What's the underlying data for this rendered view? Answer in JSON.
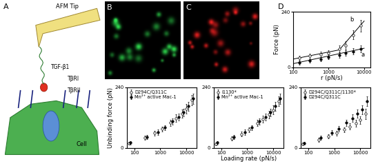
{
  "diagram": {
    "label": "A",
    "texts": {
      "tip": "AFM Tip",
      "ligand": "TGF-β1",
      "receptor1": "TβRI",
      "receptor2": "TβRII",
      "cell": "Cell"
    }
  },
  "images": [
    {
      "label": "B",
      "color": "#30e050"
    },
    {
      "label": "C",
      "color": "#f02020"
    }
  ],
  "chart_data": [
    {
      "type": "scatter",
      "label": "D",
      "xlabel": "r (pN/s)",
      "ylabel": "Force (pN)",
      "log": "x",
      "xlim": [
        100,
        15000
      ],
      "ylim": [
        0,
        240
      ],
      "xticks": [
        100,
        1000,
        10000
      ],
      "yticks": [
        0,
        240
      ],
      "series": [
        {
          "type": "scatter",
          "marker": "filled_circle",
          "color": "#000000",
          "x": [
            150,
            300,
            600,
            1000,
            2000,
            3000,
            5000,
            8000
          ],
          "values": [
            20,
            28,
            35,
            45,
            52,
            60,
            68,
            78
          ],
          "yerr": [
            8,
            8,
            10,
            10,
            12,
            12,
            14,
            15
          ]
        },
        {
          "type": "scatter",
          "marker": "open_circle",
          "color": "#000000",
          "x": [
            150,
            300,
            600,
            1000,
            2000,
            3000,
            5000,
            8000
          ],
          "values": [
            40,
            48,
            55,
            62,
            78,
            95,
            140,
            180
          ],
          "yerr": [
            10,
            10,
            12,
            12,
            15,
            18,
            20,
            25
          ]
        },
        {
          "type": "line",
          "color": "#000000",
          "x": [
            100,
            10000
          ],
          "values": [
            15,
            82
          ]
        },
        {
          "type": "line",
          "color": "#000000",
          "x": [
            100,
            2000,
            10000
          ],
          "values": [
            35,
            75,
            200
          ]
        }
      ],
      "annotations": [
        {
          "text": "a",
          "x": 9000,
          "y": 55
        },
        {
          "text": "b",
          "x": 4500,
          "y": 205
        }
      ]
    },
    {
      "type": "scatter",
      "ylabel": "Unbinding force (pN)",
      "log": "x",
      "legend": "upper left",
      "xlim": [
        50,
        25000
      ],
      "ylim": [
        0,
        240
      ],
      "xticks": [
        100,
        1000,
        10000
      ],
      "yticks": [
        0,
        240
      ],
      "series": [
        {
          "name": "D294C/Q311C",
          "marker": "open_circle",
          "color": "#000000",
          "x": [
            60,
            250,
            600,
            1200,
            2500,
            4000,
            7000,
            10000,
            16000
          ],
          "values": [
            18,
            40,
            58,
            75,
            100,
            118,
            135,
            155,
            190
          ],
          "yerr": [
            6,
            8,
            10,
            10,
            12,
            14,
            16,
            18,
            20
          ]
        },
        {
          "name": "Mn²⁺ active Mac-1",
          "marker": "filled_circle",
          "color": "#000000",
          "x": [
            70,
            300,
            800,
            1500,
            3000,
            5000,
            8000,
            12000,
            18000
          ],
          "values": [
            20,
            42,
            62,
            80,
            105,
            122,
            140,
            165,
            195
          ],
          "yerr": [
            6,
            8,
            10,
            10,
            12,
            14,
            16,
            18,
            20
          ]
        }
      ]
    },
    {
      "type": "scatter",
      "xlabel": "Loading rate (pN/s)",
      "log": "x",
      "legend": "upper left",
      "xlim": [
        50,
        25000
      ],
      "ylim": [
        0,
        240
      ],
      "xticks": [
        100,
        1000,
        10000
      ],
      "yticks": [
        0,
        240
      ],
      "series": [
        {
          "name": "I1130*",
          "marker": "open_circle",
          "color": "#000000",
          "x": [
            60,
            250,
            600,
            1200,
            2500,
            4000,
            7000,
            10000,
            16000
          ],
          "values": [
            16,
            38,
            55,
            72,
            98,
            115,
            132,
            150,
            185
          ],
          "yerr": [
            6,
            8,
            10,
            10,
            12,
            14,
            16,
            18,
            20
          ]
        },
        {
          "name": "Mn²⁺ active Mac-1",
          "marker": "filled_circle",
          "color": "#000000",
          "x": [
            70,
            300,
            800,
            1500,
            3000,
            5000,
            8000,
            12000,
            18000
          ],
          "values": [
            20,
            42,
            62,
            80,
            105,
            122,
            140,
            165,
            195
          ],
          "yerr": [
            6,
            8,
            10,
            10,
            12,
            14,
            16,
            18,
            20
          ]
        }
      ]
    },
    {
      "type": "scatter",
      "log": "x",
      "legend": "upper left",
      "xlim": [
        50,
        25000
      ],
      "ylim": [
        0,
        240
      ],
      "xticks": [
        100,
        1000,
        10000
      ],
      "yticks": [
        0,
        240
      ],
      "series": [
        {
          "name": "D294C/Q311C/1130*",
          "marker": "open_circle",
          "color": "#000000",
          "x": [
            60,
            250,
            600,
            1200,
            2500,
            4000,
            7000,
            10000,
            16000
          ],
          "values": [
            15,
            32,
            45,
            58,
            72,
            85,
            98,
            110,
            135
          ],
          "yerr": [
            6,
            8,
            8,
            10,
            10,
            12,
            14,
            16,
            20
          ]
        },
        {
          "name": "D294C/Q311C",
          "marker": "filled_circle",
          "color": "#000000",
          "x": [
            70,
            300,
            800,
            1500,
            3000,
            5000,
            8000,
            12000,
            18000
          ],
          "values": [
            18,
            40,
            60,
            76,
            100,
            118,
            135,
            152,
            185
          ],
          "yerr": [
            6,
            8,
            10,
            10,
            12,
            14,
            16,
            18,
            20
          ]
        }
      ]
    }
  ]
}
